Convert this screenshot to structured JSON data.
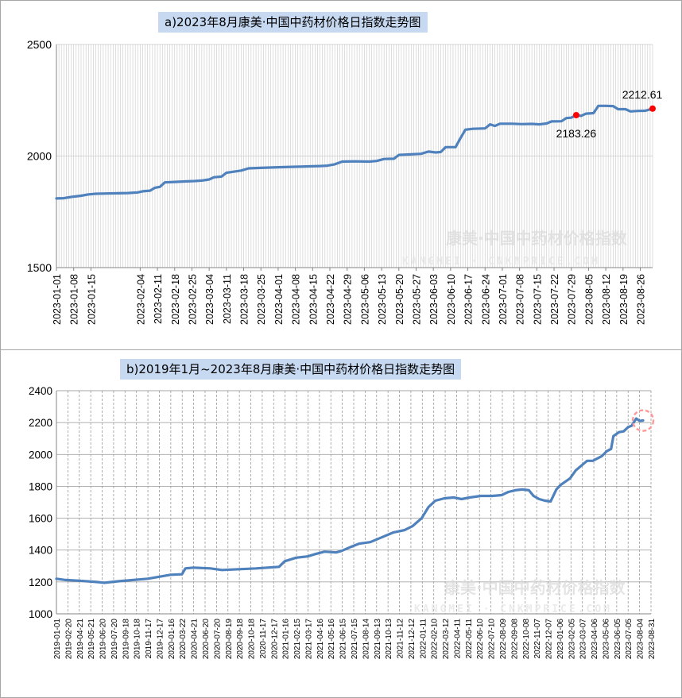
{
  "chart_data": [
    {
      "type": "line",
      "title": "a)2023年8月康美·中国中药材价格日指数走势图",
      "ylim": [
        1500,
        2500
      ],
      "yticks": [
        1500,
        2000,
        2500
      ],
      "x_tick_labels": [
        "2023-01-01",
        "2023-01-08",
        "2023-01-15",
        "2023-02-04",
        "2023-02-11",
        "2023-02-18",
        "2023-02-25",
        "2023-03-04",
        "2023-03-11",
        "2023-03-18",
        "2023-03-25",
        "2023-04-01",
        "2023-04-08",
        "2023-04-15",
        "2023-04-22",
        "2023-04-29",
        "2023-05-06",
        "2023-05-13",
        "2023-05-20",
        "2023-05-27",
        "2023-06-03",
        "2023-06-10",
        "2023-06-17",
        "2023-06-24",
        "2023-07-01",
        "2023-07-08",
        "2023-07-15",
        "2023-07-22",
        "2023-07-29",
        "2023-08-05",
        "2023-08-12",
        "2023-08-19",
        "2023-08-26"
      ],
      "grid": "vertical",
      "series": [
        {
          "color": "#4f81bd",
          "points": [
            [
              "2023-01-01",
              1810
            ],
            [
              "2023-01-04",
              1811
            ],
            [
              "2023-01-06",
              1815
            ],
            [
              "2023-01-08",
              1818
            ],
            [
              "2023-01-11",
              1822
            ],
            [
              "2023-01-14",
              1828
            ],
            [
              "2023-01-17",
              1831
            ],
            [
              "2023-01-21",
              1832
            ],
            [
              "2023-01-26",
              1833
            ],
            [
              "2023-01-30",
              1834
            ],
            [
              "2023-02-03",
              1837
            ],
            [
              "2023-02-05",
              1842
            ],
            [
              "2023-02-08",
              1845
            ],
            [
              "2023-02-10",
              1858
            ],
            [
              "2023-02-12",
              1862
            ],
            [
              "2023-02-14",
              1882
            ],
            [
              "2023-02-18",
              1884
            ],
            [
              "2023-02-22",
              1886
            ],
            [
              "2023-02-26",
              1888
            ],
            [
              "2023-03-01",
              1890
            ],
            [
              "2023-03-04",
              1895
            ],
            [
              "2023-03-06",
              1905
            ],
            [
              "2023-03-09",
              1908
            ],
            [
              "2023-03-11",
              1925
            ],
            [
              "2023-03-14",
              1930
            ],
            [
              "2023-03-17",
              1935
            ],
            [
              "2023-03-20",
              1945
            ],
            [
              "2023-03-25",
              1947
            ],
            [
              "2023-04-01",
              1950
            ],
            [
              "2023-04-08",
              1952
            ],
            [
              "2023-04-15",
              1954
            ],
            [
              "2023-04-18",
              1955
            ],
            [
              "2023-04-21",
              1957
            ],
            [
              "2023-04-24",
              1963
            ],
            [
              "2023-04-27",
              1975
            ],
            [
              "2023-05-02",
              1976
            ],
            [
              "2023-05-08",
              1975
            ],
            [
              "2023-05-11",
              1978
            ],
            [
              "2023-05-14",
              1987
            ],
            [
              "2023-05-18",
              1988
            ],
            [
              "2023-05-20",
              2005
            ],
            [
              "2023-05-24",
              2007
            ],
            [
              "2023-05-29",
              2010
            ],
            [
              "2023-06-01",
              2020
            ],
            [
              "2023-06-04",
              2016
            ],
            [
              "2023-06-06",
              2018
            ],
            [
              "2023-06-08",
              2040
            ],
            [
              "2023-06-12",
              2040
            ],
            [
              "2023-06-14",
              2080
            ],
            [
              "2023-06-16",
              2118
            ],
            [
              "2023-06-19",
              2122
            ],
            [
              "2023-06-24",
              2124
            ],
            [
              "2023-06-26",
              2142
            ],
            [
              "2023-06-28",
              2135
            ],
            [
              "2023-06-30",
              2145
            ],
            [
              "2023-07-05",
              2145
            ],
            [
              "2023-07-09",
              2143
            ],
            [
              "2023-07-13",
              2144
            ],
            [
              "2023-07-16",
              2142
            ],
            [
              "2023-07-19",
              2146
            ],
            [
              "2023-07-21",
              2155
            ],
            [
              "2023-07-25",
              2156
            ],
            [
              "2023-07-27",
              2170
            ],
            [
              "2023-07-29",
              2172
            ],
            [
              "2023-07-31",
              2183.26
            ],
            [
              "2023-08-02",
              2180
            ],
            [
              "2023-08-04",
              2190
            ],
            [
              "2023-08-07",
              2192
            ],
            [
              "2023-08-09",
              2225
            ],
            [
              "2023-08-12",
              2225
            ],
            [
              "2023-08-15",
              2224
            ],
            [
              "2023-08-17",
              2210
            ],
            [
              "2023-08-20",
              2210
            ],
            [
              "2023-08-22",
              2200
            ],
            [
              "2023-08-25",
              2202
            ],
            [
              "2023-08-28",
              2203
            ],
            [
              "2023-08-31",
              2212.61
            ]
          ]
        }
      ],
      "annotations": [
        {
          "x": "2023-07-31",
          "y": 2183.26,
          "label": "2183.26",
          "color": "#ff0000"
        },
        {
          "x": "2023-08-31",
          "y": 2212.61,
          "label": "2212.61",
          "color": "#ff0000"
        }
      ]
    },
    {
      "type": "line",
      "title": "b)2019年1月~2023年8月康美·中国中药材价格日指数走势图",
      "ylim": [
        1000,
        2400
      ],
      "yticks": [
        1000,
        1200,
        1400,
        1600,
        1800,
        2000,
        2200,
        2400
      ],
      "x_tick_labels": [
        "2019-01-01",
        "2019-02-20",
        "2019-04-21",
        "2019-05-21",
        "2019-06-20",
        "2019-07-20",
        "2019-09-18",
        "2019-10-18",
        "2019-11-17",
        "2019-12-17",
        "2020-01-16",
        "2020-03-22",
        "2020-04-21",
        "2020-06-20",
        "2020-07-20",
        "2020-08-19",
        "2020-09-18",
        "2020-10-18",
        "2020-11-17",
        "2020-12-17",
        "2021-01-16",
        "2021-02-15",
        "2021-03-17",
        "2021-04-16",
        "2021-05-16",
        "2021-06-15",
        "2021-07-15",
        "2021-08-14",
        "2021-09-13",
        "2021-10-13",
        "2021-11-12",
        "2021-12-12",
        "2022-01-11",
        "2022-02-10",
        "2022-03-12",
        "2022-04-11",
        "2022-05-11",
        "2022-06-10",
        "2022-07-10",
        "2022-08-09",
        "2022-09-08",
        "2022-10-08",
        "2022-11-07",
        "2022-12-07",
        "2023-01-06",
        "2023-02-05",
        "2023-03-07",
        "2023-04-06",
        "2023-05-06",
        "2023-06-05",
        "2023-07-05",
        "2023-08-04",
        "2023-08-31"
      ],
      "grid": "both",
      "series": [
        {
          "color": "#4f81bd",
          "points": [
            [
              0,
              1220
            ],
            [
              0.08,
              1212
            ],
            [
              0.2,
              1208
            ],
            [
              0.35,
              1200
            ],
            [
              0.42,
              1195
            ],
            [
              0.55,
              1205
            ],
            [
              0.8,
              1220
            ],
            [
              1.0,
              1245
            ],
            [
              1.1,
              1248
            ],
            [
              1.13,
              1285
            ],
            [
              1.2,
              1290
            ],
            [
              1.35,
              1285
            ],
            [
              1.45,
              1275
            ],
            [
              1.6,
              1280
            ],
            [
              1.75,
              1285
            ],
            [
              1.85,
              1290
            ],
            [
              1.95,
              1295
            ],
            [
              2.0,
              1330
            ],
            [
              2.1,
              1352
            ],
            [
              2.2,
              1360
            ],
            [
              2.27,
              1375
            ],
            [
              2.35,
              1390
            ],
            [
              2.45,
              1385
            ],
            [
              2.5,
              1395
            ],
            [
              2.58,
              1420
            ],
            [
              2.65,
              1440
            ],
            [
              2.75,
              1450
            ],
            [
              2.85,
              1480
            ],
            [
              2.95,
              1510
            ],
            [
              3.05,
              1525
            ],
            [
              3.12,
              1550
            ],
            [
              3.2,
              1600
            ],
            [
              3.26,
              1670
            ],
            [
              3.32,
              1710
            ],
            [
              3.4,
              1725
            ],
            [
              3.48,
              1730
            ],
            [
              3.55,
              1720
            ],
            [
              3.62,
              1730
            ],
            [
              3.72,
              1740
            ],
            [
              3.82,
              1740
            ],
            [
              3.9,
              1745
            ],
            [
              3.96,
              1765
            ],
            [
              4.02,
              1775
            ],
            [
              4.08,
              1780
            ],
            [
              4.14,
              1775
            ],
            [
              4.18,
              1740
            ],
            [
              4.23,
              1720
            ],
            [
              4.28,
              1710
            ],
            [
              4.33,
              1705
            ],
            [
              4.38,
              1780
            ],
            [
              4.42,
              1810
            ],
            [
              4.46,
              1830
            ],
            [
              4.5,
              1850
            ],
            [
              4.55,
              1900
            ],
            [
              4.6,
              1930
            ],
            [
              4.65,
              1960
            ],
            [
              4.7,
              1960
            ],
            [
              4.74,
              1975
            ],
            [
              4.78,
              1990
            ],
            [
              4.82,
              2020
            ],
            [
              4.86,
              2035
            ],
            [
              4.88,
              2115
            ],
            [
              4.93,
              2140
            ],
            [
              4.97,
              2145
            ],
            [
              5.01,
              2172
            ],
            [
              5.04,
              2180
            ],
            [
              5.08,
              2225
            ],
            [
              5.11,
              2210
            ],
            [
              5.14,
              2213
            ]
          ]
        }
      ],
      "annotations": [
        {
          "x": 5.14,
          "y": 2213,
          "marker": "dashed-circle",
          "color": "#ff9999"
        }
      ]
    }
  ],
  "watermark": {
    "brand": "康美·中国中药材价格指数",
    "url": "KANGMEI · CNKMPRICE.COM"
  }
}
